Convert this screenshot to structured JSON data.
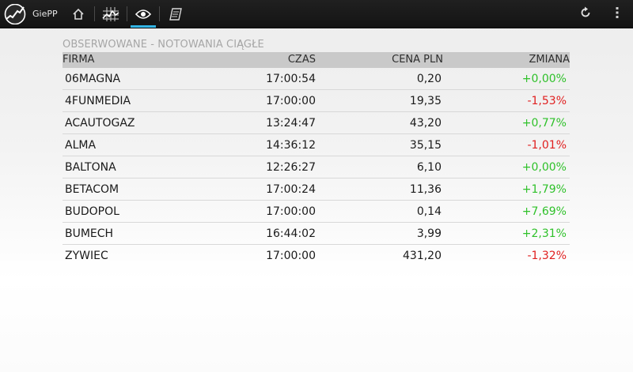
{
  "app": {
    "title": "GiePP"
  },
  "nav": {
    "tabs": [
      {
        "icon": "home-icon",
        "active": false
      },
      {
        "icon": "chart-icon",
        "active": false
      },
      {
        "icon": "eye-icon",
        "active": true
      },
      {
        "icon": "notes-icon",
        "active": false
      }
    ]
  },
  "actions": [
    {
      "icon": "refresh-icon"
    },
    {
      "icon": "overflow-menu-icon"
    }
  ],
  "colors": {
    "accent": "#33b5e5",
    "positive": "#2fc12a",
    "negative": "#e02020"
  },
  "section": {
    "title": "OBSERWOWANE - NOTOWANIA CIĄGŁE"
  },
  "table": {
    "columns": [
      "FIRMA",
      "CZAS",
      "CENA PLN",
      "ZMIANA"
    ],
    "rows": [
      {
        "firma": "06MAGNA",
        "czas": "17:00:54",
        "cena": "0,20",
        "zmiana": "+0,00%",
        "trend": "pos"
      },
      {
        "firma": "4FUNMEDIA",
        "czas": "17:00:00",
        "cena": "19,35",
        "zmiana": "-1,53%",
        "trend": "neg"
      },
      {
        "firma": "ACAUTOGAZ",
        "czas": "13:24:47",
        "cena": "43,20",
        "zmiana": "+0,77%",
        "trend": "pos"
      },
      {
        "firma": "ALMA",
        "czas": "14:36:12",
        "cena": "35,15",
        "zmiana": "-1,01%",
        "trend": "neg"
      },
      {
        "firma": "BALTONA",
        "czas": "12:26:27",
        "cena": "6,10",
        "zmiana": "+0,00%",
        "trend": "pos"
      },
      {
        "firma": "BETACOM",
        "czas": "17:00:24",
        "cena": "11,36",
        "zmiana": "+1,79%",
        "trend": "pos"
      },
      {
        "firma": "BUDOPOL",
        "czas": "17:00:00",
        "cena": "0,14",
        "zmiana": "+7,69%",
        "trend": "pos"
      },
      {
        "firma": "BUMECH",
        "czas": "16:44:02",
        "cena": "3,99",
        "zmiana": "+2,31%",
        "trend": "pos"
      },
      {
        "firma": "ZYWIEC",
        "czas": "17:00:00",
        "cena": "431,20",
        "zmiana": "-1,32%",
        "trend": "neg"
      }
    ]
  }
}
